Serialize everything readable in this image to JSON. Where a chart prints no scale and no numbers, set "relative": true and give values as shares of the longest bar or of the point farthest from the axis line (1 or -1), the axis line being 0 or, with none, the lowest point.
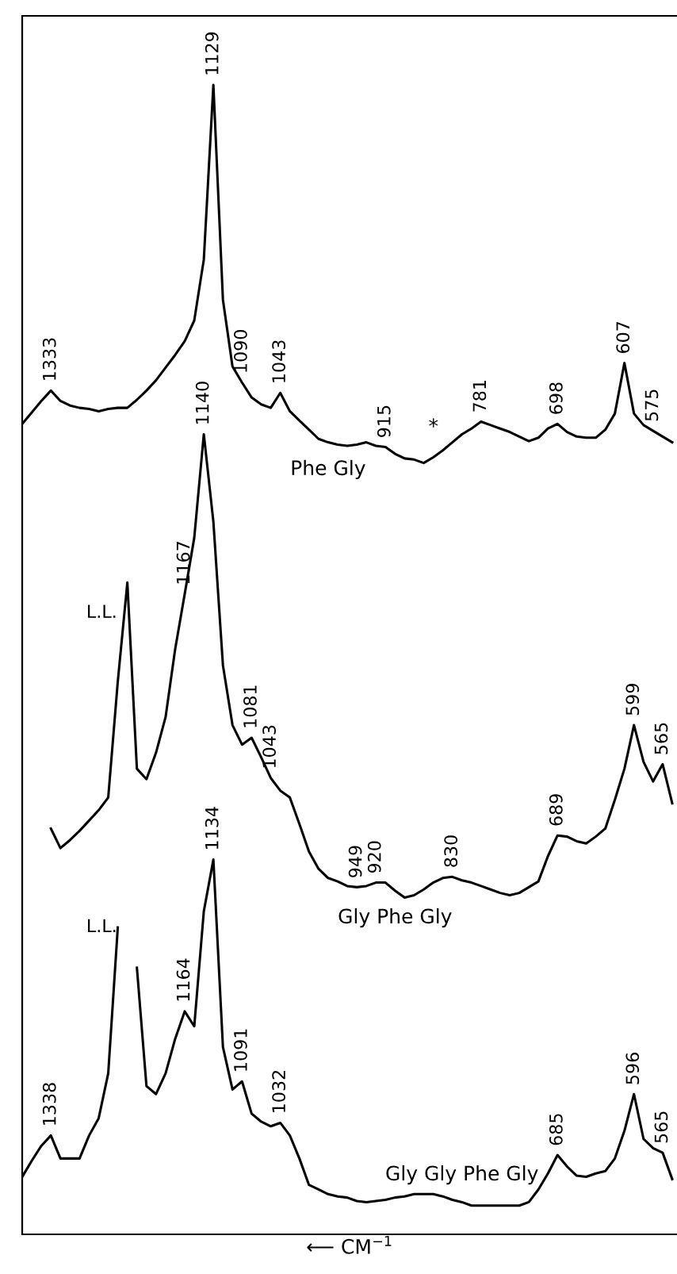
{
  "chart_data": {
    "type": "line",
    "relative": true,
    "xlabel": "⟵ CM$^{−1}$",
    "categories": [
      null,
      null,
      null,
      null,
      null,
      null,
      null,
      null,
      null,
      null,
      null,
      null,
      null,
      null,
      null,
      null,
      null,
      null,
      null,
      null,
      null,
      null,
      null,
      null,
      null,
      null,
      null,
      null,
      null,
      null,
      null,
      null,
      null,
      null,
      null,
      null,
      null,
      null,
      null,
      null,
      null,
      null,
      null,
      null,
      null,
      null,
      null,
      null,
      null,
      null,
      null,
      null,
      null,
      null,
      null,
      null,
      null,
      null,
      null,
      null,
      null,
      null,
      null,
      null,
      null,
      null,
      null,
      null,
      null
    ],
    "series": [
      {
        "name": "Phe Gly",
        "color": "#000000",
        "values": [
          0.705,
          0.715,
          0.725,
          0.734,
          0.725,
          0.721,
          0.719,
          0.718,
          0.716,
          0.718,
          0.719,
          0.719,
          0.726,
          0.734,
          0.743,
          0.754,
          0.765,
          0.777,
          0.795,
          0.848,
          1,
          0.813,
          0.755,
          0.741,
          0.728,
          0.722,
          0.719,
          0.732,
          0.716,
          0.708,
          0.7,
          0.692,
          0.689,
          0.687,
          0.686,
          0.687,
          0.689,
          0.686,
          0.685,
          0.679,
          0.675,
          0.674,
          0.671,
          0.676,
          0.682,
          0.689,
          0.696,
          0.701,
          0.707,
          0.704,
          0.701,
          0.698,
          0.694,
          0.69,
          0.693,
          0.701,
          0.705,
          0.698,
          0.694,
          0.693,
          0.693,
          0.7,
          0.714,
          0.758,
          0.714,
          0.704,
          0.699,
          0.694,
          0.689
        ]
      },
      {
        "name": "Gly Phe Gly",
        "color": "#000000",
        "values": [
          null,
          null,
          null,
          0.353,
          0.336,
          0.343,
          0.351,
          0.36,
          0.369,
          0.38,
          0.481,
          0.567,
          0.405,
          0.396,
          0.419,
          0.45,
          0.509,
          0.557,
          0.606,
          0.696,
          0.62,
          0.495,
          0.443,
          0.426,
          0.432,
          0.415,
          0.397,
          0.386,
          0.38,
          0.357,
          0.333,
          0.318,
          0.31,
          0.307,
          0.303,
          0.302,
          0.303,
          0.306,
          0.306,
          0.299,
          0.293,
          0.295,
          0.3,
          0.306,
          0.31,
          0.311,
          0.308,
          0.306,
          0.303,
          0.3,
          0.297,
          0.295,
          0.297,
          0.302,
          0.307,
          0.329,
          0.347,
          0.346,
          0.342,
          0.34,
          0.346,
          0.353,
          0.378,
          0.405,
          0.443,
          0.411,
          0.394,
          0.409,
          0.375
        ]
      },
      {
        "name": "Gly Gly Phe Gly",
        "color": "#000000",
        "values": [
          0.05,
          0.064,
          0.077,
          0.086,
          0.066,
          0.066,
          0.066,
          0.086,
          0.101,
          0.14,
          0.267,
          null,
          0.232,
          0.129,
          0.122,
          0.14,
          0.17,
          0.194,
          0.181,
          0.281,
          0.326,
          0.163,
          0.126,
          0.133,
          0.105,
          0.098,
          0.094,
          0.097,
          0.086,
          0.066,
          0.043,
          0.039,
          0.035,
          0.033,
          0.032,
          0.029,
          0.028,
          0.029,
          0.03,
          0.032,
          0.033,
          0.035,
          0.035,
          0.035,
          0.033,
          0.03,
          0.028,
          0.025,
          0.025,
          0.025,
          0.025,
          0.025,
          0.025,
          0.028,
          0.039,
          0.053,
          0.069,
          0.059,
          0.051,
          0.05,
          0.053,
          0.055,
          0.066,
          0.09,
          0.122,
          0.083,
          0.075,
          0.071,
          0.048
        ]
      }
    ],
    "annotations": [
      {
        "text": "1333",
        "y": 0.734
      },
      {
        "text": "1129",
        "y": 1
      },
      {
        "text": "1090",
        "y": 0.741
      },
      {
        "text": "1043",
        "y": 0.732
      },
      {
        "text": "915",
        "y": 0.685
      },
      {
        "text": "*",
        "y": 0.682
      },
      {
        "text": "781",
        "y": 0.707
      },
      {
        "text": "698",
        "y": 0.705
      },
      {
        "text": "607",
        "y": 0.758
      },
      {
        "text": "575",
        "y": 0.699
      },
      "L.L.",
      {
        "text": "1167",
        "y": 0.557
      },
      {
        "text": "1140",
        "y": 0.696
      },
      {
        "text": "1081",
        "y": 0.432
      },
      {
        "text": "1043",
        "y": 0.397
      },
      {
        "text": "949",
        "y": 0.302
      },
      {
        "text": "920",
        "y": 0.306
      },
      {
        "text": "830",
        "y": 0.311
      },
      {
        "text": "689",
        "y": 0.347
      },
      {
        "text": "599",
        "y": 0.443
      },
      {
        "text": "565",
        "y": 0.409
      },
      "L.L.",
      {
        "text": "1338",
        "y": 0.086
      },
      {
        "text": "1164",
        "y": 0.194
      },
      {
        "text": "1134",
        "y": 0.326
      },
      {
        "text": "1091",
        "y": 0.133
      },
      {
        "text": "1032",
        "y": 0.097
      },
      {
        "text": "685",
        "y": 0.069
      },
      {
        "text": "596",
        "y": 0.122
      },
      {
        "text": "565",
        "y": 0.071
      }
    ]
  }
}
